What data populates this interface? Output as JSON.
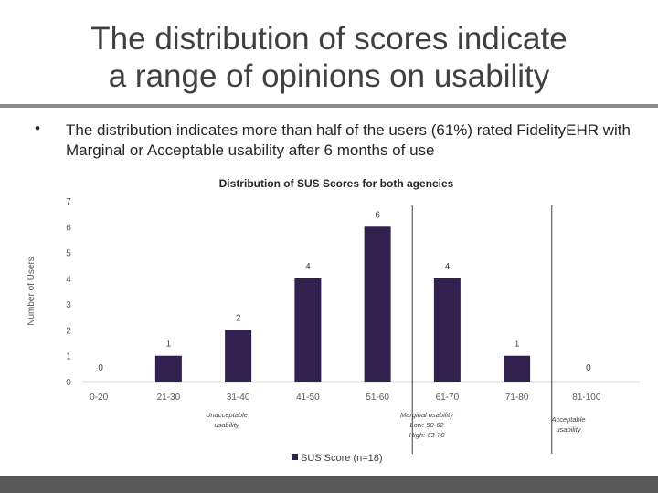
{
  "slide": {
    "title_line1": "The distribution of scores indicate",
    "title_line2": "a range of opinions on usability",
    "bullet_text": "The distribution indicates more than half of the users (61%) rated FidelityEHR with Marginal or Acceptable usability after 6 months of use"
  },
  "chart_data": {
    "type": "bar",
    "title": "Distribution of SUS Scores for both agencies",
    "ylabel": "Number of Users",
    "xlabel": "",
    "categories": [
      "0-20",
      "21-30",
      "31-40",
      "41-50",
      "51-60",
      "61-70",
      "71-80",
      "81-100"
    ],
    "series": [
      {
        "name": "SUS Score (n=18)",
        "values": [
          0,
          1,
          2,
          4,
          6,
          4,
          1,
          0
        ]
      }
    ],
    "ylim": [
      0,
      7
    ],
    "yticks": [
      0,
      1,
      2,
      3,
      4,
      5,
      6,
      7
    ],
    "bar_color": "#32204f",
    "legend_position": "bottom",
    "annotations": [
      {
        "text_lines": [
          "Unacceptable",
          "usability"
        ]
      },
      {
        "text_lines": [
          "Marginal usability",
          "Low: 50-62",
          "High: 63-70"
        ]
      },
      {
        "text_lines": [
          "Acceptable",
          "usability"
        ]
      }
    ]
  }
}
